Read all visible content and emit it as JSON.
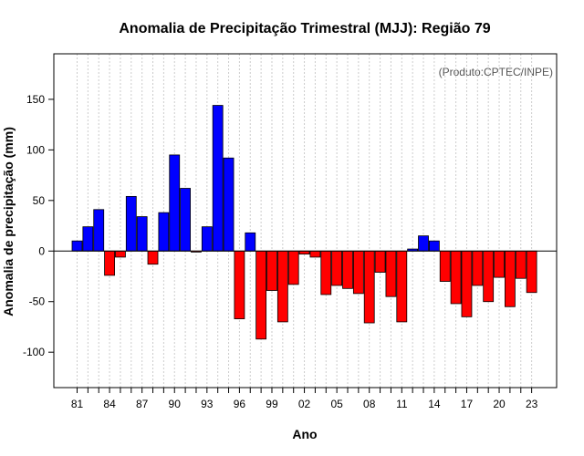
{
  "chart_data": {
    "type": "bar",
    "title": "Anomalia de Precipitação Trimestral (MJJ): Região 79",
    "xlabel": "Ano",
    "ylabel": "Anomalia de precipitação (mm)",
    "credit": "(Produto:CPTEC/INPE)",
    "ylim": [
      -135,
      195
    ],
    "yticks": [
      -100,
      -50,
      0,
      50,
      100,
      150
    ],
    "ytick_labels": [
      "-100",
      "-50",
      "0",
      "50",
      "100",
      "150"
    ],
    "xtick_labels": [
      "81",
      "84",
      "87",
      "90",
      "93",
      "96",
      "99",
      "02",
      "05",
      "08",
      "11",
      "14",
      "17",
      "20",
      "23"
    ],
    "grid": "vertical-dotted",
    "positive_color": "#0000ff",
    "negative_color": "#ff0000",
    "years": [
      1981,
      1982,
      1983,
      1984,
      1985,
      1986,
      1987,
      1988,
      1989,
      1990,
      1991,
      1992,
      1993,
      1994,
      1995,
      1996,
      1997,
      1998,
      1999,
      2000,
      2001,
      2002,
      2003,
      2004,
      2005,
      2006,
      2007,
      2008,
      2009,
      2010,
      2011,
      2012,
      2013,
      2014,
      2015,
      2016,
      2017,
      2018,
      2019,
      2020,
      2021,
      2022,
      2023
    ],
    "values": [
      10,
      24,
      41,
      -24,
      -6,
      54,
      34,
      -13,
      38,
      95,
      62,
      -1,
      24,
      144,
      92,
      -67,
      18,
      -87,
      -39,
      -70,
      -33,
      -3,
      -6,
      -43,
      -34,
      -37,
      -42,
      -71,
      -21,
      -45,
      -70,
      2,
      15,
      10,
      -30,
      -52,
      -65,
      -34,
      -50,
      -26,
      -55,
      -27,
      -41
    ]
  }
}
